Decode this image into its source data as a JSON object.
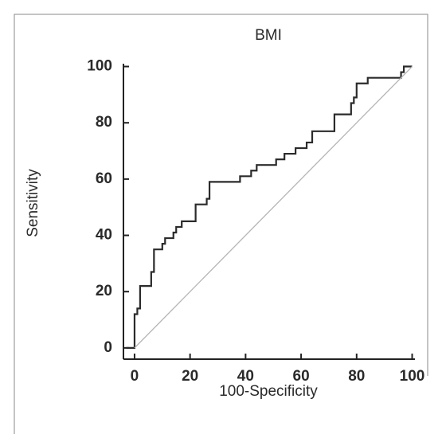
{
  "chart_data": {
    "type": "line",
    "title": "BMI",
    "xlabel": "100-Specificity",
    "ylabel": "Sensitivity",
    "xlim": [
      -4,
      101
    ],
    "ylim": [
      -4,
      101
    ],
    "xticks": [
      0,
      20,
      40,
      60,
      80,
      100
    ],
    "yticks": [
      0,
      20,
      40,
      60,
      80,
      100
    ],
    "series": [
      {
        "color": "#2b2b2b",
        "x": [
          -3,
          0,
          0,
          0,
          1,
          1,
          2,
          2,
          6,
          6,
          7,
          7,
          8,
          8,
          10,
          10,
          11,
          11,
          12,
          12,
          14,
          14,
          15,
          15,
          17,
          17,
          18,
          18,
          22,
          22,
          23,
          23,
          26,
          26,
          27,
          27,
          28,
          28,
          38,
          38,
          42,
          42,
          43,
          43,
          44,
          44,
          51,
          51,
          54,
          54,
          58,
          58,
          62,
          62,
          64,
          64,
          66,
          66,
          72,
          72,
          78,
          78,
          79,
          79,
          80,
          80,
          81,
          81,
          84,
          84,
          95,
          95,
          96,
          96,
          97,
          97,
          100
        ],
        "y": [
          0,
          0,
          10,
          12,
          12,
          14,
          14,
          22,
          22,
          27,
          27,
          35,
          35,
          35,
          35,
          37,
          37,
          39,
          39,
          39,
          39,
          41,
          41,
          43,
          43,
          45,
          45,
          45,
          45,
          51,
          51,
          51,
          51,
          53,
          53,
          59,
          59,
          59,
          59,
          61,
          61,
          63,
          63,
          63,
          63,
          65,
          65,
          67,
          67,
          69,
          69,
          71,
          71,
          73,
          73,
          77,
          77,
          77,
          77,
          83,
          83,
          87,
          87,
          89,
          89,
          94,
          94,
          94,
          94,
          96,
          96,
          96,
          96,
          98,
          98,
          100,
          100
        ]
      },
      {
        "color": "#b5b5b5",
        "x": [
          0,
          100
        ],
        "y": [
          0,
          100
        ]
      }
    ]
  }
}
